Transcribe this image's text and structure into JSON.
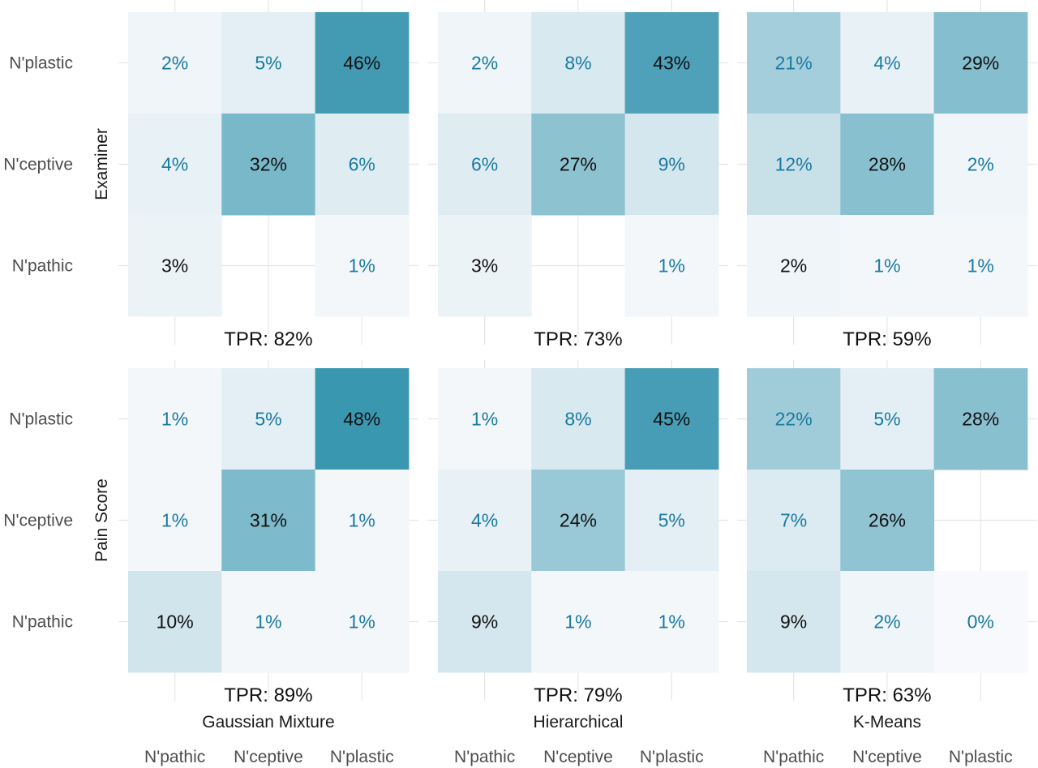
{
  "chart_data": {
    "type": "heatmap",
    "row_categories": [
      "N'plastic",
      "N'ceptive",
      "N'pathic"
    ],
    "col_categories": [
      "N'pathic",
      "N'ceptive",
      "N'plastic"
    ],
    "row_facets": [
      "Examiner",
      "Pain Score"
    ],
    "col_facets": [
      "Gaussian Mixture",
      "Hierarchical",
      "K-Means"
    ],
    "value_unit": "%",
    "panels": [
      {
        "row_facet": "Examiner",
        "col_facet": "Gaussian Mixture",
        "values": [
          [
            2,
            5,
            46
          ],
          [
            4,
            32,
            6
          ],
          [
            3,
            null,
            1
          ]
        ],
        "tpr": "TPR: 82%"
      },
      {
        "row_facet": "Examiner",
        "col_facet": "Hierarchical",
        "values": [
          [
            2,
            8,
            43
          ],
          [
            6,
            27,
            9
          ],
          [
            3,
            null,
            1
          ]
        ],
        "tpr": "TPR: 73%"
      },
      {
        "row_facet": "Examiner",
        "col_facet": "K-Means",
        "values": [
          [
            21,
            4,
            29
          ],
          [
            12,
            28,
            2
          ],
          [
            2,
            1,
            1
          ]
        ],
        "tpr": "TPR: 59%"
      },
      {
        "row_facet": "Pain Score",
        "col_facet": "Gaussian Mixture",
        "values": [
          [
            1,
            5,
            48
          ],
          [
            1,
            31,
            1
          ],
          [
            10,
            1,
            1
          ]
        ],
        "tpr": "TPR: 89%"
      },
      {
        "row_facet": "Pain Score",
        "col_facet": "Hierarchical",
        "values": [
          [
            1,
            8,
            45
          ],
          [
            4,
            24,
            5
          ],
          [
            9,
            1,
            1
          ]
        ],
        "tpr": "TPR: 79%"
      },
      {
        "row_facet": "Pain Score",
        "col_facet": "K-Means",
        "values": [
          [
            22,
            5,
            28
          ],
          [
            7,
            26,
            null
          ],
          [
            9,
            2,
            0
          ]
        ],
        "tpr": "TPR: 63%"
      }
    ],
    "color_scale": {
      "low": "#f7f9fc",
      "high": "#3a97b0",
      "domain": [
        0,
        48
      ]
    },
    "label_colors": {
      "on_diagonal": "#111111",
      "off_diagonal": "#1a7aa0"
    },
    "grid": true,
    "legend": "none"
  }
}
